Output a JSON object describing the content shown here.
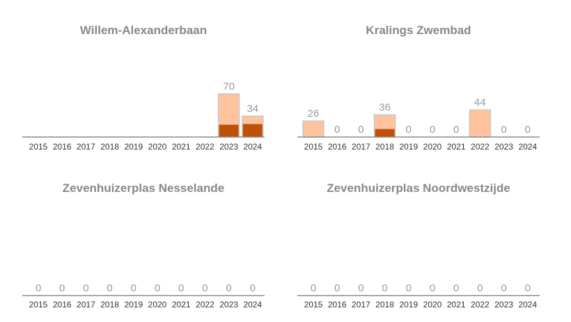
{
  "chart_data": [
    {
      "type": "bar",
      "title": "Willem-Alexanderbaan",
      "categories": [
        "2015",
        "2016",
        "2017",
        "2018",
        "2019",
        "2020",
        "2021",
        "2022",
        "2023",
        "2024"
      ],
      "totals": [
        null,
        null,
        null,
        null,
        null,
        null,
        null,
        null,
        70,
        34
      ],
      "series": [
        {
          "values": [
            null,
            null,
            null,
            null,
            null,
            null,
            null,
            null,
            20,
            21
          ]
        },
        {
          "values": [
            null,
            null,
            null,
            null,
            null,
            null,
            null,
            null,
            50,
            13
          ]
        }
      ]
    },
    {
      "type": "bar",
      "title": "Kralings Zwembad",
      "categories": [
        "2015",
        "2016",
        "2017",
        "2018",
        "2019",
        "2020",
        "2021",
        "2022",
        "2023",
        "2024"
      ],
      "totals": [
        26,
        0,
        0,
        36,
        0,
        0,
        0,
        44,
        0,
        0
      ],
      "series": [
        {
          "values": [
            0,
            0,
            0,
            13,
            0,
            0,
            0,
            0,
            0,
            0
          ]
        },
        {
          "values": [
            26,
            0,
            0,
            23,
            0,
            0,
            0,
            44,
            0,
            0
          ]
        }
      ]
    },
    {
      "type": "bar",
      "title": "Zevenhuizerplas Nesselande",
      "categories": [
        "2015",
        "2016",
        "2017",
        "2018",
        "2019",
        "2020",
        "2021",
        "2022",
        "2023",
        "2024"
      ],
      "totals": [
        0,
        0,
        0,
        0,
        0,
        0,
        0,
        0,
        0,
        0
      ],
      "series": [
        {
          "values": [
            0,
            0,
            0,
            0,
            0,
            0,
            0,
            0,
            0,
            0
          ]
        },
        {
          "values": [
            0,
            0,
            0,
            0,
            0,
            0,
            0,
            0,
            0,
            0
          ]
        }
      ]
    },
    {
      "type": "bar",
      "title": "Zevenhuizerplas Noordwestzijde",
      "categories": [
        "2015",
        "2016",
        "2017",
        "2018",
        "2019",
        "2020",
        "2021",
        "2022",
        "2023",
        "2024"
      ],
      "totals": [
        0,
        0,
        0,
        0,
        0,
        0,
        0,
        0,
        0,
        0
      ],
      "series": [
        {
          "values": [
            0,
            0,
            0,
            0,
            0,
            0,
            0,
            0,
            0,
            0
          ]
        },
        {
          "values": [
            0,
            0,
            0,
            0,
            0,
            0,
            0,
            0,
            0,
            0
          ]
        }
      ]
    }
  ],
  "colors": {
    "dark_series": "#c0510a",
    "light_series": "#ffc49d",
    "bar_outline": "#c8c8c8",
    "axis": "#8c8c8c",
    "title_text": "#888888",
    "value_text": "#999999",
    "tick_text": "#333333"
  }
}
